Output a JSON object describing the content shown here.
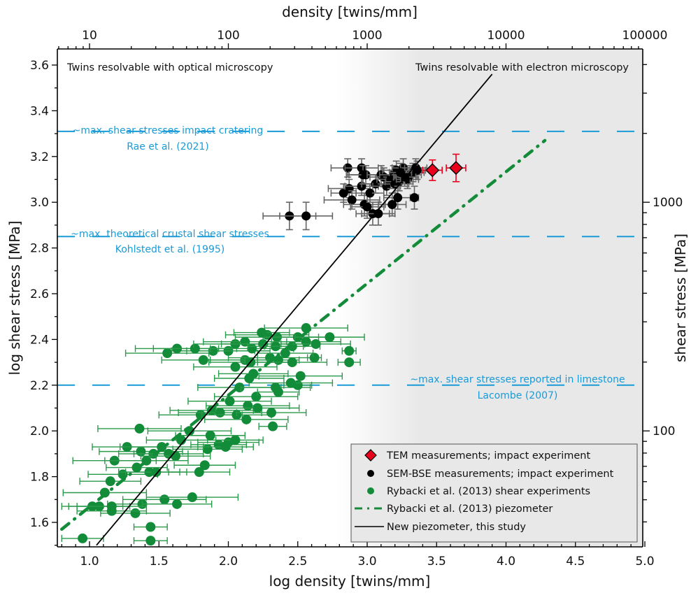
{
  "chart_data": {
    "type": "scatter",
    "title": "",
    "xlabel": "log density [twins/mm]",
    "ylabel": "log shear stress [MPa]",
    "x2label": "density [twins/mm]",
    "y2label": "shear stress [MPa]",
    "xlim": [
      0.77,
      5.0
    ],
    "ylim": [
      1.49,
      3.67
    ],
    "xticks": [
      "1.0",
      "1.5",
      "2.0",
      "2.5",
      "3.0",
      "3.5",
      "4.0",
      "4.5",
      "5.0"
    ],
    "xtick_values": [
      1.0,
      1.5,
      2.0,
      2.5,
      3.0,
      3.5,
      4.0,
      4.5,
      5.0
    ],
    "yticks": [
      "1.6",
      "1.8",
      "2.0",
      "2.2",
      "2.4",
      "2.6",
      "2.8",
      "3.0",
      "3.2",
      "3.4",
      "3.6"
    ],
    "ytick_values": [
      1.6,
      1.8,
      2.0,
      2.2,
      2.4,
      2.6,
      2.8,
      3.0,
      3.2,
      3.4,
      3.6
    ],
    "x2ticks": [
      "10",
      "100",
      "1000",
      "10000",
      "100000"
    ],
    "y2ticks": [
      "100",
      "1000"
    ],
    "grid": false,
    "legend_position": "bottom-right",
    "regions": [
      {
        "label": "Twins resolvable with optical microscopy",
        "x_from": 0.77,
        "x_to": 2.8,
        "color": "#ffffff"
      },
      {
        "label": "Twins resolvable with electron microscopy",
        "x_from": 2.8,
        "x_to": 5.0,
        "color": "#e8e8e8"
      }
    ],
    "reference_lines": [
      {
        "y": 3.31,
        "label": "~max. shear stresses impact cratering",
        "source": "Rae et al. (2021)",
        "color": "#1a9ad6"
      },
      {
        "y": 2.85,
        "label": "~max. theoretical crustal shear stresses",
        "source": "Kohlstedt et al. (1995)",
        "color": "#1a9ad6"
      },
      {
        "y": 2.2,
        "label": "~max. shear stresses reported in limestone",
        "source": "Lacombe (2007)",
        "color": "#1a9ad6"
      }
    ],
    "series": [
      {
        "name": "TEM measurements; impact experiment",
        "kind": "diamond",
        "color": "#e8001c",
        "points": [
          {
            "x": 3.47,
            "y": 3.14,
            "xerr": 0.07,
            "yerr": 0.045
          },
          {
            "x": 3.64,
            "y": 3.15,
            "xerr": 0.07,
            "yerr": 0.06
          }
        ]
      },
      {
        "name": "SEM-BSE measurements; impact experiment",
        "kind": "dot",
        "color": "#000000",
        "points": [
          {
            "x": 2.44,
            "y": 2.94,
            "xerr": 0.19,
            "yerr": 0.06
          },
          {
            "x": 2.56,
            "y": 2.94,
            "xerr": 0.19,
            "yerr": 0.06
          },
          {
            "x": 2.86,
            "y": 3.15,
            "xerr": 0.12,
            "yerr": 0.04
          },
          {
            "x": 2.96,
            "y": 3.15,
            "xerr": 0.12,
            "yerr": 0.04
          },
          {
            "x": 2.83,
            "y": 3.04,
            "xerr": 0.09,
            "yerr": 0.04
          },
          {
            "x": 2.87,
            "y": 3.06,
            "xerr": 0.15,
            "yerr": 0.04
          },
          {
            "x": 2.89,
            "y": 3.01,
            "xerr": 0.2,
            "yerr": 0.04
          },
          {
            "x": 2.96,
            "y": 3.07,
            "xerr": 0.12,
            "yerr": 0.04
          },
          {
            "x": 2.97,
            "y": 3.12,
            "xerr": 0.12,
            "yerr": 0.04
          },
          {
            "x": 2.99,
            "y": 3.12,
            "xerr": 0.12,
            "yerr": 0.04
          },
          {
            "x": 2.98,
            "y": 2.99,
            "xerr": 0.15,
            "yerr": 0.05
          },
          {
            "x": 3.0,
            "y": 2.98,
            "xerr": 0.12,
            "yerr": 0.05
          },
          {
            "x": 3.02,
            "y": 3.04,
            "xerr": 0.1,
            "yerr": 0.04
          },
          {
            "x": 3.04,
            "y": 2.95,
            "xerr": 0.12,
            "yerr": 0.05
          },
          {
            "x": 3.08,
            "y": 2.95,
            "xerr": 0.12,
            "yerr": 0.05
          },
          {
            "x": 3.06,
            "y": 3.08,
            "xerr": 0.1,
            "yerr": 0.04
          },
          {
            "x": 3.1,
            "y": 3.12,
            "xerr": 0.1,
            "yerr": 0.04
          },
          {
            "x": 3.12,
            "y": 3.11,
            "xerr": 0.1,
            "yerr": 0.04
          },
          {
            "x": 3.14,
            "y": 3.07,
            "xerr": 0.1,
            "yerr": 0.04
          },
          {
            "x": 3.17,
            "y": 3.1,
            "xerr": 0.1,
            "yerr": 0.04
          },
          {
            "x": 3.19,
            "y": 3.12,
            "xerr": 0.1,
            "yerr": 0.04
          },
          {
            "x": 3.21,
            "y": 3.14,
            "xerr": 0.1,
            "yerr": 0.04
          },
          {
            "x": 3.23,
            "y": 3.09,
            "xerr": 0.1,
            "yerr": 0.04
          },
          {
            "x": 3.2,
            "y": 3.08,
            "xerr": 0.1,
            "yerr": 0.04
          },
          {
            "x": 3.22,
            "y": 3.02,
            "xerr": 0.1,
            "yerr": 0.05
          },
          {
            "x": 3.18,
            "y": 2.99,
            "xerr": 0.1,
            "yerr": 0.05
          },
          {
            "x": 3.26,
            "y": 3.15,
            "xerr": 0.08,
            "yerr": 0.04
          },
          {
            "x": 3.29,
            "y": 3.1,
            "xerr": 0.08,
            "yerr": 0.04
          },
          {
            "x": 3.31,
            "y": 3.12,
            "xerr": 0.08,
            "yerr": 0.04
          },
          {
            "x": 3.33,
            "y": 3.13,
            "xerr": 0.08,
            "yerr": 0.04
          },
          {
            "x": 3.35,
            "y": 3.15,
            "xerr": 0.08,
            "yerr": 0.04
          },
          {
            "x": 3.36,
            "y": 3.14,
            "xerr": 0.06,
            "yerr": 0.04
          },
          {
            "x": 3.34,
            "y": 3.02,
            "xerr": 0.03,
            "yerr": 0.05
          },
          {
            "x": 3.27,
            "y": 3.11,
            "xerr": 0.08,
            "yerr": 0.04
          },
          {
            "x": 3.24,
            "y": 3.13,
            "xerr": 0.08,
            "yerr": 0.04
          }
        ]
      },
      {
        "name": "Rybacki et al. (2013) shear experiments",
        "kind": "dot",
        "color": "#138c3a",
        "points": [
          {
            "x": 0.95,
            "y": 1.53,
            "xerr": 0.15
          },
          {
            "x": 1.44,
            "y": 1.52,
            "xerr": 0.12
          },
          {
            "x": 1.44,
            "y": 1.58,
            "xerr": 0.12
          },
          {
            "x": 1.33,
            "y": 1.64,
            "xerr": 0.25
          },
          {
            "x": 1.38,
            "y": 1.68,
            "xerr": 0.25
          },
          {
            "x": 1.02,
            "y": 1.67,
            "xerr": 0.22
          },
          {
            "x": 1.07,
            "y": 1.67,
            "xerr": 0.22
          },
          {
            "x": 1.16,
            "y": 1.65,
            "xerr": 0.25
          },
          {
            "x": 1.16,
            "y": 1.67,
            "xerr": 0.25
          },
          {
            "x": 1.54,
            "y": 1.7,
            "xerr": 0.3
          },
          {
            "x": 1.74,
            "y": 1.71,
            "xerr": 0.33
          },
          {
            "x": 1.63,
            "y": 1.68,
            "xerr": 0.25
          },
          {
            "x": 1.11,
            "y": 1.73,
            "xerr": 0.3
          },
          {
            "x": 1.15,
            "y": 1.78,
            "xerr": 0.22
          },
          {
            "x": 1.24,
            "y": 1.81,
            "xerr": 0.25
          },
          {
            "x": 1.43,
            "y": 1.82,
            "xerr": 0.22
          },
          {
            "x": 1.48,
            "y": 1.82,
            "xerr": 0.22
          },
          {
            "x": 1.79,
            "y": 1.82,
            "xerr": 0.22
          },
          {
            "x": 1.83,
            "y": 1.85,
            "xerr": 0.22
          },
          {
            "x": 1.34,
            "y": 1.84,
            "xerr": 0.22
          },
          {
            "x": 1.18,
            "y": 1.87,
            "xerr": 0.3
          },
          {
            "x": 1.37,
            "y": 1.91,
            "xerr": 0.3
          },
          {
            "x": 1.46,
            "y": 1.9,
            "xerr": 0.25
          },
          {
            "x": 1.57,
            "y": 1.9,
            "xerr": 0.25
          },
          {
            "x": 1.62,
            "y": 1.89,
            "xerr": 0.25
          },
          {
            "x": 1.85,
            "y": 1.92,
            "xerr": 0.25
          },
          {
            "x": 1.93,
            "y": 1.94,
            "xerr": 0.2
          },
          {
            "x": 2.0,
            "y": 1.95,
            "xerr": 0.22
          },
          {
            "x": 1.98,
            "y": 1.93,
            "xerr": 0.2
          },
          {
            "x": 2.05,
            "y": 1.96,
            "xerr": 0.2
          },
          {
            "x": 1.27,
            "y": 1.93,
            "xerr": 0.25
          },
          {
            "x": 1.41,
            "y": 1.87,
            "xerr": 0.3
          },
          {
            "x": 1.52,
            "y": 1.93,
            "xerr": 0.3
          },
          {
            "x": 1.66,
            "y": 1.96,
            "xerr": 0.25
          },
          {
            "x": 1.72,
            "y": 2.0,
            "xerr": 0.3
          },
          {
            "x": 1.36,
            "y": 2.01,
            "xerr": 0.3
          },
          {
            "x": 1.87,
            "y": 1.98,
            "xerr": 0.25
          },
          {
            "x": 1.8,
            "y": 2.07,
            "xerr": 0.3
          },
          {
            "x": 1.88,
            "y": 2.09,
            "xerr": 0.3
          },
          {
            "x": 1.94,
            "y": 2.08,
            "xerr": 0.3
          },
          {
            "x": 2.06,
            "y": 2.07,
            "xerr": 0.25
          },
          {
            "x": 2.14,
            "y": 2.11,
            "xerr": 0.3
          },
          {
            "x": 2.21,
            "y": 2.1,
            "xerr": 0.3
          },
          {
            "x": 2.13,
            "y": 2.05,
            "xerr": 0.3
          },
          {
            "x": 2.31,
            "y": 2.08,
            "xerr": 0.25
          },
          {
            "x": 2.32,
            "y": 2.02,
            "xerr": 0.1
          },
          {
            "x": 2.2,
            "y": 2.15,
            "xerr": 0.3
          },
          {
            "x": 2.08,
            "y": 2.19,
            "xerr": 0.3
          },
          {
            "x": 2.01,
            "y": 2.13,
            "xerr": 0.3
          },
          {
            "x": 2.34,
            "y": 2.19,
            "xerr": 0.25
          },
          {
            "x": 2.36,
            "y": 2.17,
            "xerr": 0.15
          },
          {
            "x": 2.5,
            "y": 2.2,
            "xerr": 0.1
          },
          {
            "x": 2.45,
            "y": 2.21,
            "xerr": 0.3
          },
          {
            "x": 2.18,
            "y": 2.25,
            "xerr": 0.25
          },
          {
            "x": 2.15,
            "y": 2.23,
            "xerr": 0.25
          },
          {
            "x": 2.12,
            "y": 2.31,
            "xerr": 0.25
          },
          {
            "x": 2.16,
            "y": 2.3,
            "xerr": 0.3
          },
          {
            "x": 2.3,
            "y": 2.32,
            "xerr": 0.3
          },
          {
            "x": 2.36,
            "y": 2.31,
            "xerr": 0.15
          },
          {
            "x": 2.46,
            "y": 2.3,
            "xerr": 0.25
          },
          {
            "x": 2.52,
            "y": 2.24,
            "xerr": 0.3
          },
          {
            "x": 2.05,
            "y": 2.28,
            "xerr": 0.3
          },
          {
            "x": 1.82,
            "y": 2.31,
            "xerr": 0.3
          },
          {
            "x": 2.0,
            "y": 2.35,
            "xerr": 0.3
          },
          {
            "x": 1.89,
            "y": 2.35,
            "xerr": 0.3
          },
          {
            "x": 1.56,
            "y": 2.34,
            "xerr": 0.3
          },
          {
            "x": 1.63,
            "y": 2.36,
            "xerr": 0.3
          },
          {
            "x": 1.76,
            "y": 2.36,
            "xerr": 0.3
          },
          {
            "x": 2.05,
            "y": 2.38,
            "xerr": 0.3
          },
          {
            "x": 2.12,
            "y": 2.39,
            "xerr": 0.3
          },
          {
            "x": 2.17,
            "y": 2.36,
            "xerr": 0.3
          },
          {
            "x": 2.25,
            "y": 2.38,
            "xerr": 0.3
          },
          {
            "x": 2.28,
            "y": 2.42,
            "xerr": 0.3
          },
          {
            "x": 2.35,
            "y": 2.41,
            "xerr": 0.3
          },
          {
            "x": 2.34,
            "y": 2.37,
            "xerr": 0.2
          },
          {
            "x": 2.46,
            "y": 2.37,
            "xerr": 0.2
          },
          {
            "x": 2.5,
            "y": 2.41,
            "xerr": 0.25
          },
          {
            "x": 2.56,
            "y": 2.39,
            "xerr": 0.25
          },
          {
            "x": 2.63,
            "y": 2.38,
            "xerr": 0.25
          },
          {
            "x": 2.73,
            "y": 2.41,
            "xerr": 0.25
          },
          {
            "x": 2.56,
            "y": 2.45,
            "xerr": 0.3
          },
          {
            "x": 2.87,
            "y": 2.35,
            "xerr": 0.05
          },
          {
            "x": 2.87,
            "y": 2.3,
            "xerr": 0.08
          },
          {
            "x": 2.62,
            "y": 2.32,
            "xerr": 0.05
          },
          {
            "x": 2.24,
            "y": 2.43,
            "xerr": 0.2
          },
          {
            "x": 2.41,
            "y": 2.34,
            "xerr": 0.2
          }
        ]
      },
      {
        "name": "Rybacki et al. (2013) piezometer",
        "kind": "dashdot-line",
        "color": "#138c3a",
        "line": [
          {
            "x": 0.8,
            "y": 1.57
          },
          {
            "x": 4.28,
            "y": 3.27
          }
        ]
      },
      {
        "name": "New piezometer, this study",
        "kind": "solid-line",
        "color": "#000000",
        "line": [
          {
            "x": 1.05,
            "y": 1.5
          },
          {
            "x": 3.9,
            "y": 3.56
          }
        ]
      }
    ]
  }
}
